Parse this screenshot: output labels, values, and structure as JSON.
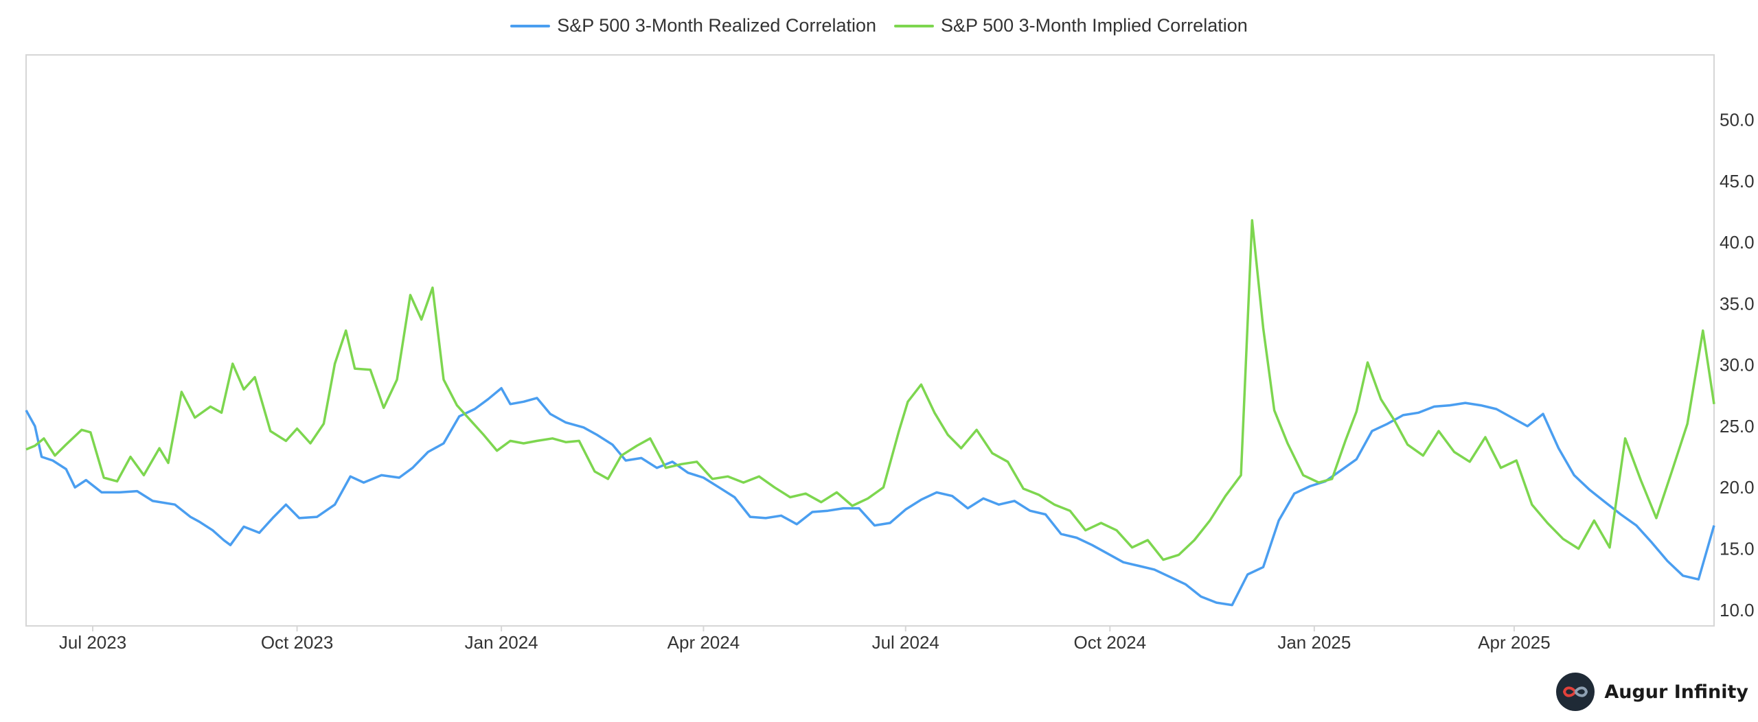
{
  "brand": {
    "name": "Augur Infinity",
    "logo_icon": "infinity-icon",
    "logo_colors": {
      "left": "#e2413b",
      "right": "#8fa1b3",
      "bg": "#1f2a36"
    }
  },
  "chart_data": {
    "type": "line",
    "title": "",
    "xlabel": "",
    "ylabel": "",
    "legend_placement": "top-center",
    "grid": false,
    "y_axis_position": "right",
    "xlim": [
      "2023-06-01",
      "2025-06-30"
    ],
    "ylim": [
      8.7,
      55.3
    ],
    "y_ticks": [
      10.0,
      15.0,
      20.0,
      25.0,
      30.0,
      35.0,
      40.0,
      45.0,
      50.0
    ],
    "y_tick_labels": [
      "10.0",
      "15.0",
      "20.0",
      "25.0",
      "30.0",
      "35.0",
      "40.0",
      "45.0",
      "50.0"
    ],
    "x_ticks": [
      "2023-07-01",
      "2023-10-01",
      "2024-01-01",
      "2024-04-01",
      "2024-07-01",
      "2024-10-01",
      "2025-01-01",
      "2025-04-01"
    ],
    "x_tick_labels": [
      "Jul 2023",
      "Oct 2023",
      "Jan 2024",
      "Apr 2024",
      "Jul 2024",
      "Oct 2024",
      "Jan 2025",
      "Apr 2025"
    ],
    "series": [
      {
        "name": "S&P 500 3-Month Realized Correlation",
        "color": "#4a9ef0",
        "points": [
          [
            "2023-06-01",
            26.3
          ],
          [
            "2023-06-05",
            25.0
          ],
          [
            "2023-06-08",
            22.5
          ],
          [
            "2023-06-13",
            22.2
          ],
          [
            "2023-06-19",
            21.5
          ],
          [
            "2023-06-23",
            20.0
          ],
          [
            "2023-06-28",
            20.6
          ],
          [
            "2023-07-05",
            19.6
          ],
          [
            "2023-07-13",
            19.6
          ],
          [
            "2023-07-21",
            19.7
          ],
          [
            "2023-07-28",
            18.9
          ],
          [
            "2023-08-07",
            18.6
          ],
          [
            "2023-08-14",
            17.6
          ],
          [
            "2023-08-18",
            17.2
          ],
          [
            "2023-08-24",
            16.5
          ],
          [
            "2023-08-29",
            15.7
          ],
          [
            "2023-09-01",
            15.3
          ],
          [
            "2023-09-07",
            16.8
          ],
          [
            "2023-09-14",
            16.3
          ],
          [
            "2023-09-20",
            17.5
          ],
          [
            "2023-09-26",
            18.6
          ],
          [
            "2023-10-02",
            17.5
          ],
          [
            "2023-10-10",
            17.6
          ],
          [
            "2023-10-18",
            18.6
          ],
          [
            "2023-10-25",
            20.9
          ],
          [
            "2023-10-31",
            20.4
          ],
          [
            "2023-11-08",
            21.0
          ],
          [
            "2023-11-16",
            20.8
          ],
          [
            "2023-11-22",
            21.6
          ],
          [
            "2023-11-29",
            22.9
          ],
          [
            "2023-12-06",
            23.6
          ],
          [
            "2023-12-13",
            25.8
          ],
          [
            "2023-12-20",
            26.4
          ],
          [
            "2023-12-26",
            27.2
          ],
          [
            "2024-01-01",
            28.1
          ],
          [
            "2024-01-05",
            26.8
          ],
          [
            "2024-01-11",
            27.0
          ],
          [
            "2024-01-17",
            27.3
          ],
          [
            "2024-01-23",
            26.0
          ],
          [
            "2024-01-30",
            25.3
          ],
          [
            "2024-02-07",
            24.9
          ],
          [
            "2024-02-13",
            24.3
          ],
          [
            "2024-02-20",
            23.5
          ],
          [
            "2024-02-26",
            22.2
          ],
          [
            "2024-03-04",
            22.4
          ],
          [
            "2024-03-11",
            21.6
          ],
          [
            "2024-03-18",
            22.1
          ],
          [
            "2024-03-25",
            21.2
          ],
          [
            "2024-04-01",
            20.8
          ],
          [
            "2024-04-08",
            20.0
          ],
          [
            "2024-04-15",
            19.2
          ],
          [
            "2024-04-22",
            17.6
          ],
          [
            "2024-04-29",
            17.5
          ],
          [
            "2024-05-06",
            17.7
          ],
          [
            "2024-05-13",
            17.0
          ],
          [
            "2024-05-20",
            18.0
          ],
          [
            "2024-05-27",
            18.1
          ],
          [
            "2024-06-03",
            18.3
          ],
          [
            "2024-06-10",
            18.3
          ],
          [
            "2024-06-17",
            16.9
          ],
          [
            "2024-06-24",
            17.1
          ],
          [
            "2024-07-01",
            18.2
          ],
          [
            "2024-07-08",
            19.0
          ],
          [
            "2024-07-15",
            19.6
          ],
          [
            "2024-07-22",
            19.3
          ],
          [
            "2024-07-29",
            18.3
          ],
          [
            "2024-08-05",
            19.1
          ],
          [
            "2024-08-12",
            18.6
          ],
          [
            "2024-08-19",
            18.9
          ],
          [
            "2024-08-26",
            18.1
          ],
          [
            "2024-09-02",
            17.8
          ],
          [
            "2024-09-09",
            16.2
          ],
          [
            "2024-09-16",
            15.9
          ],
          [
            "2024-09-23",
            15.3
          ],
          [
            "2024-09-30",
            14.6
          ],
          [
            "2024-10-07",
            13.9
          ],
          [
            "2024-10-14",
            13.6
          ],
          [
            "2024-10-21",
            13.3
          ],
          [
            "2024-10-28",
            12.7
          ],
          [
            "2024-11-04",
            12.1
          ],
          [
            "2024-11-11",
            11.1
          ],
          [
            "2024-11-18",
            10.6
          ],
          [
            "2024-11-25",
            10.4
          ],
          [
            "2024-12-02",
            12.9
          ],
          [
            "2024-12-09",
            13.5
          ],
          [
            "2024-12-16",
            17.3
          ],
          [
            "2024-12-23",
            19.5
          ],
          [
            "2024-12-30",
            20.1
          ],
          [
            "2025-01-06",
            20.5
          ],
          [
            "2025-01-13",
            21.4
          ],
          [
            "2025-01-20",
            22.3
          ],
          [
            "2025-01-27",
            24.6
          ],
          [
            "2025-02-03",
            25.2
          ],
          [
            "2025-02-10",
            25.9
          ],
          [
            "2025-02-17",
            26.1
          ],
          [
            "2025-02-24",
            26.6
          ],
          [
            "2025-03-03",
            26.7
          ],
          [
            "2025-03-10",
            26.9
          ],
          [
            "2025-03-17",
            26.7
          ],
          [
            "2025-03-24",
            26.4
          ],
          [
            "2025-03-31",
            25.7
          ],
          [
            "2025-04-07",
            25.0
          ],
          [
            "2025-04-14",
            26.0
          ],
          [
            "2025-04-21",
            23.2
          ],
          [
            "2025-04-28",
            21.0
          ],
          [
            "2025-05-05",
            19.8
          ],
          [
            "2025-05-12",
            18.8
          ],
          [
            "2025-05-19",
            17.8
          ],
          [
            "2025-05-26",
            16.9
          ],
          [
            "2025-06-02",
            15.5
          ],
          [
            "2025-06-09",
            14.0
          ],
          [
            "2025-06-16",
            12.8
          ],
          [
            "2025-06-23",
            12.5
          ],
          [
            "2025-06-30",
            16.9
          ]
        ]
      },
      {
        "name": "S&P 500 3-Month Implied Correlation",
        "color": "#7dd64f",
        "points": [
          [
            "2023-06-01",
            23.1
          ],
          [
            "2023-06-05",
            23.4
          ],
          [
            "2023-06-09",
            24.0
          ],
          [
            "2023-06-14",
            22.6
          ],
          [
            "2023-06-19",
            23.5
          ],
          [
            "2023-06-26",
            24.7
          ],
          [
            "2023-06-30",
            24.5
          ],
          [
            "2023-07-06",
            20.8
          ],
          [
            "2023-07-12",
            20.5
          ],
          [
            "2023-07-18",
            22.5
          ],
          [
            "2023-07-24",
            21.0
          ],
          [
            "2023-07-31",
            23.2
          ],
          [
            "2023-08-04",
            22.0
          ],
          [
            "2023-08-10",
            27.8
          ],
          [
            "2023-08-16",
            25.7
          ],
          [
            "2023-08-23",
            26.6
          ],
          [
            "2023-08-28",
            26.1
          ],
          [
            "2023-09-02",
            30.1
          ],
          [
            "2023-09-07",
            28.0
          ],
          [
            "2023-09-12",
            29.0
          ],
          [
            "2023-09-19",
            24.6
          ],
          [
            "2023-09-26",
            23.8
          ],
          [
            "2023-10-01",
            24.8
          ],
          [
            "2023-10-07",
            23.6
          ],
          [
            "2023-10-13",
            25.2
          ],
          [
            "2023-10-18",
            30.1
          ],
          [
            "2023-10-23",
            32.8
          ],
          [
            "2023-10-27",
            29.7
          ],
          [
            "2023-11-03",
            29.6
          ],
          [
            "2023-11-09",
            26.5
          ],
          [
            "2023-11-15",
            28.8
          ],
          [
            "2023-11-21",
            35.7
          ],
          [
            "2023-11-26",
            33.7
          ],
          [
            "2023-12-01",
            36.3
          ],
          [
            "2023-12-06",
            28.8
          ],
          [
            "2023-12-12",
            26.7
          ],
          [
            "2023-12-18",
            25.5
          ],
          [
            "2023-12-24",
            24.3
          ],
          [
            "2023-12-30",
            23.0
          ],
          [
            "2024-01-05",
            23.8
          ],
          [
            "2024-01-11",
            23.6
          ],
          [
            "2024-01-17",
            23.8
          ],
          [
            "2024-01-24",
            24.0
          ],
          [
            "2024-01-30",
            23.7
          ],
          [
            "2024-02-05",
            23.8
          ],
          [
            "2024-02-12",
            21.3
          ],
          [
            "2024-02-18",
            20.7
          ],
          [
            "2024-02-24",
            22.6
          ],
          [
            "2024-03-02",
            23.4
          ],
          [
            "2024-03-08",
            24.0
          ],
          [
            "2024-03-15",
            21.6
          ],
          [
            "2024-03-22",
            21.9
          ],
          [
            "2024-03-29",
            22.1
          ],
          [
            "2024-04-05",
            20.7
          ],
          [
            "2024-04-12",
            20.9
          ],
          [
            "2024-04-19",
            20.4
          ],
          [
            "2024-04-26",
            20.9
          ],
          [
            "2024-05-03",
            20.0
          ],
          [
            "2024-05-10",
            19.2
          ],
          [
            "2024-05-17",
            19.5
          ],
          [
            "2024-05-24",
            18.8
          ],
          [
            "2024-05-31",
            19.6
          ],
          [
            "2024-06-07",
            18.5
          ],
          [
            "2024-06-14",
            19.1
          ],
          [
            "2024-06-21",
            20.0
          ],
          [
            "2024-06-28",
            24.6
          ],
          [
            "2024-07-02",
            27.0
          ],
          [
            "2024-07-08",
            28.4
          ],
          [
            "2024-07-14",
            26.1
          ],
          [
            "2024-07-20",
            24.3
          ],
          [
            "2024-07-26",
            23.2
          ],
          [
            "2024-08-02",
            24.7
          ],
          [
            "2024-08-09",
            22.8
          ],
          [
            "2024-08-16",
            22.1
          ],
          [
            "2024-08-23",
            19.9
          ],
          [
            "2024-08-30",
            19.4
          ],
          [
            "2024-09-06",
            18.6
          ],
          [
            "2024-09-13",
            18.1
          ],
          [
            "2024-09-20",
            16.5
          ],
          [
            "2024-09-27",
            17.1
          ],
          [
            "2024-10-04",
            16.5
          ],
          [
            "2024-10-11",
            15.1
          ],
          [
            "2024-10-18",
            15.7
          ],
          [
            "2024-10-25",
            14.1
          ],
          [
            "2024-11-01",
            14.5
          ],
          [
            "2024-11-08",
            15.7
          ],
          [
            "2024-11-15",
            17.3
          ],
          [
            "2024-11-22",
            19.3
          ],
          [
            "2024-11-29",
            21.0
          ],
          [
            "2024-12-04",
            41.8
          ],
          [
            "2024-12-09",
            33.0
          ],
          [
            "2024-12-14",
            26.3
          ],
          [
            "2024-12-20",
            23.6
          ],
          [
            "2024-12-27",
            21.0
          ],
          [
            "2025-01-03",
            20.4
          ],
          [
            "2025-01-09",
            20.7
          ],
          [
            "2025-01-15",
            23.8
          ],
          [
            "2025-01-20",
            26.2
          ],
          [
            "2025-01-25",
            30.2
          ],
          [
            "2025-01-31",
            27.2
          ],
          [
            "2025-02-06",
            25.5
          ],
          [
            "2025-02-12",
            23.5
          ],
          [
            "2025-02-19",
            22.6
          ],
          [
            "2025-02-26",
            24.6
          ],
          [
            "2025-03-05",
            22.9
          ],
          [
            "2025-03-12",
            22.1
          ],
          [
            "2025-03-19",
            24.1
          ],
          [
            "2025-03-26",
            21.6
          ],
          [
            "2025-04-02",
            22.2
          ],
          [
            "2025-04-09",
            18.6
          ],
          [
            "2025-04-16",
            17.1
          ],
          [
            "2025-04-23",
            15.8
          ],
          [
            "2025-04-30",
            15.0
          ],
          [
            "2025-05-07",
            17.3
          ],
          [
            "2025-05-14",
            15.1
          ],
          [
            "2025-05-21",
            24.0
          ],
          [
            "2025-05-28",
            20.6
          ],
          [
            "2025-06-04",
            17.5
          ],
          [
            "2025-06-11",
            21.3
          ],
          [
            "2025-06-18",
            25.2
          ],
          [
            "2025-06-25",
            32.8
          ],
          [
            "2025-06-30",
            26.8
          ]
        ]
      }
    ]
  }
}
